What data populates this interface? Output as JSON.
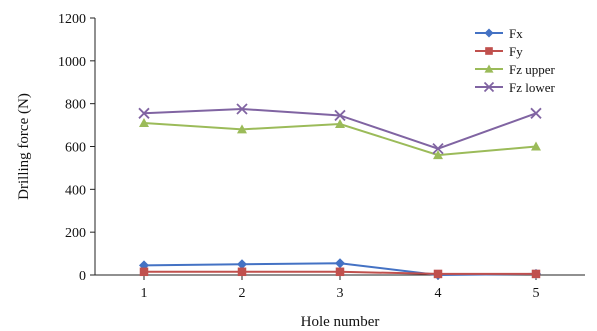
{
  "chart_data": {
    "type": "line",
    "xlabel": "Hole number",
    "ylabel": "Drilling force (N)",
    "x": [
      1,
      2,
      3,
      4,
      5
    ],
    "xlim": [
      0.5,
      5.5
    ],
    "ylim": [
      0,
      1200
    ],
    "yticks": [
      0,
      200,
      400,
      600,
      800,
      1000,
      1200
    ],
    "grid": false,
    "legend_position": "top-right",
    "series": [
      {
        "name": "Fx",
        "values": [
          45,
          50,
          55,
          0,
          5
        ],
        "color": "#4472c4",
        "marker": "diamond"
      },
      {
        "name": "Fy",
        "values": [
          15,
          15,
          15,
          5,
          5
        ],
        "color": "#c0504d",
        "marker": "square"
      },
      {
        "name": "Fz upper",
        "values": [
          710,
          680,
          705,
          560,
          600
        ],
        "color": "#9bbb59",
        "marker": "triangle"
      },
      {
        "name": "Fz lower",
        "values": [
          755,
          775,
          745,
          590,
          755
        ],
        "color": "#8064a2",
        "marker": "x"
      }
    ]
  }
}
